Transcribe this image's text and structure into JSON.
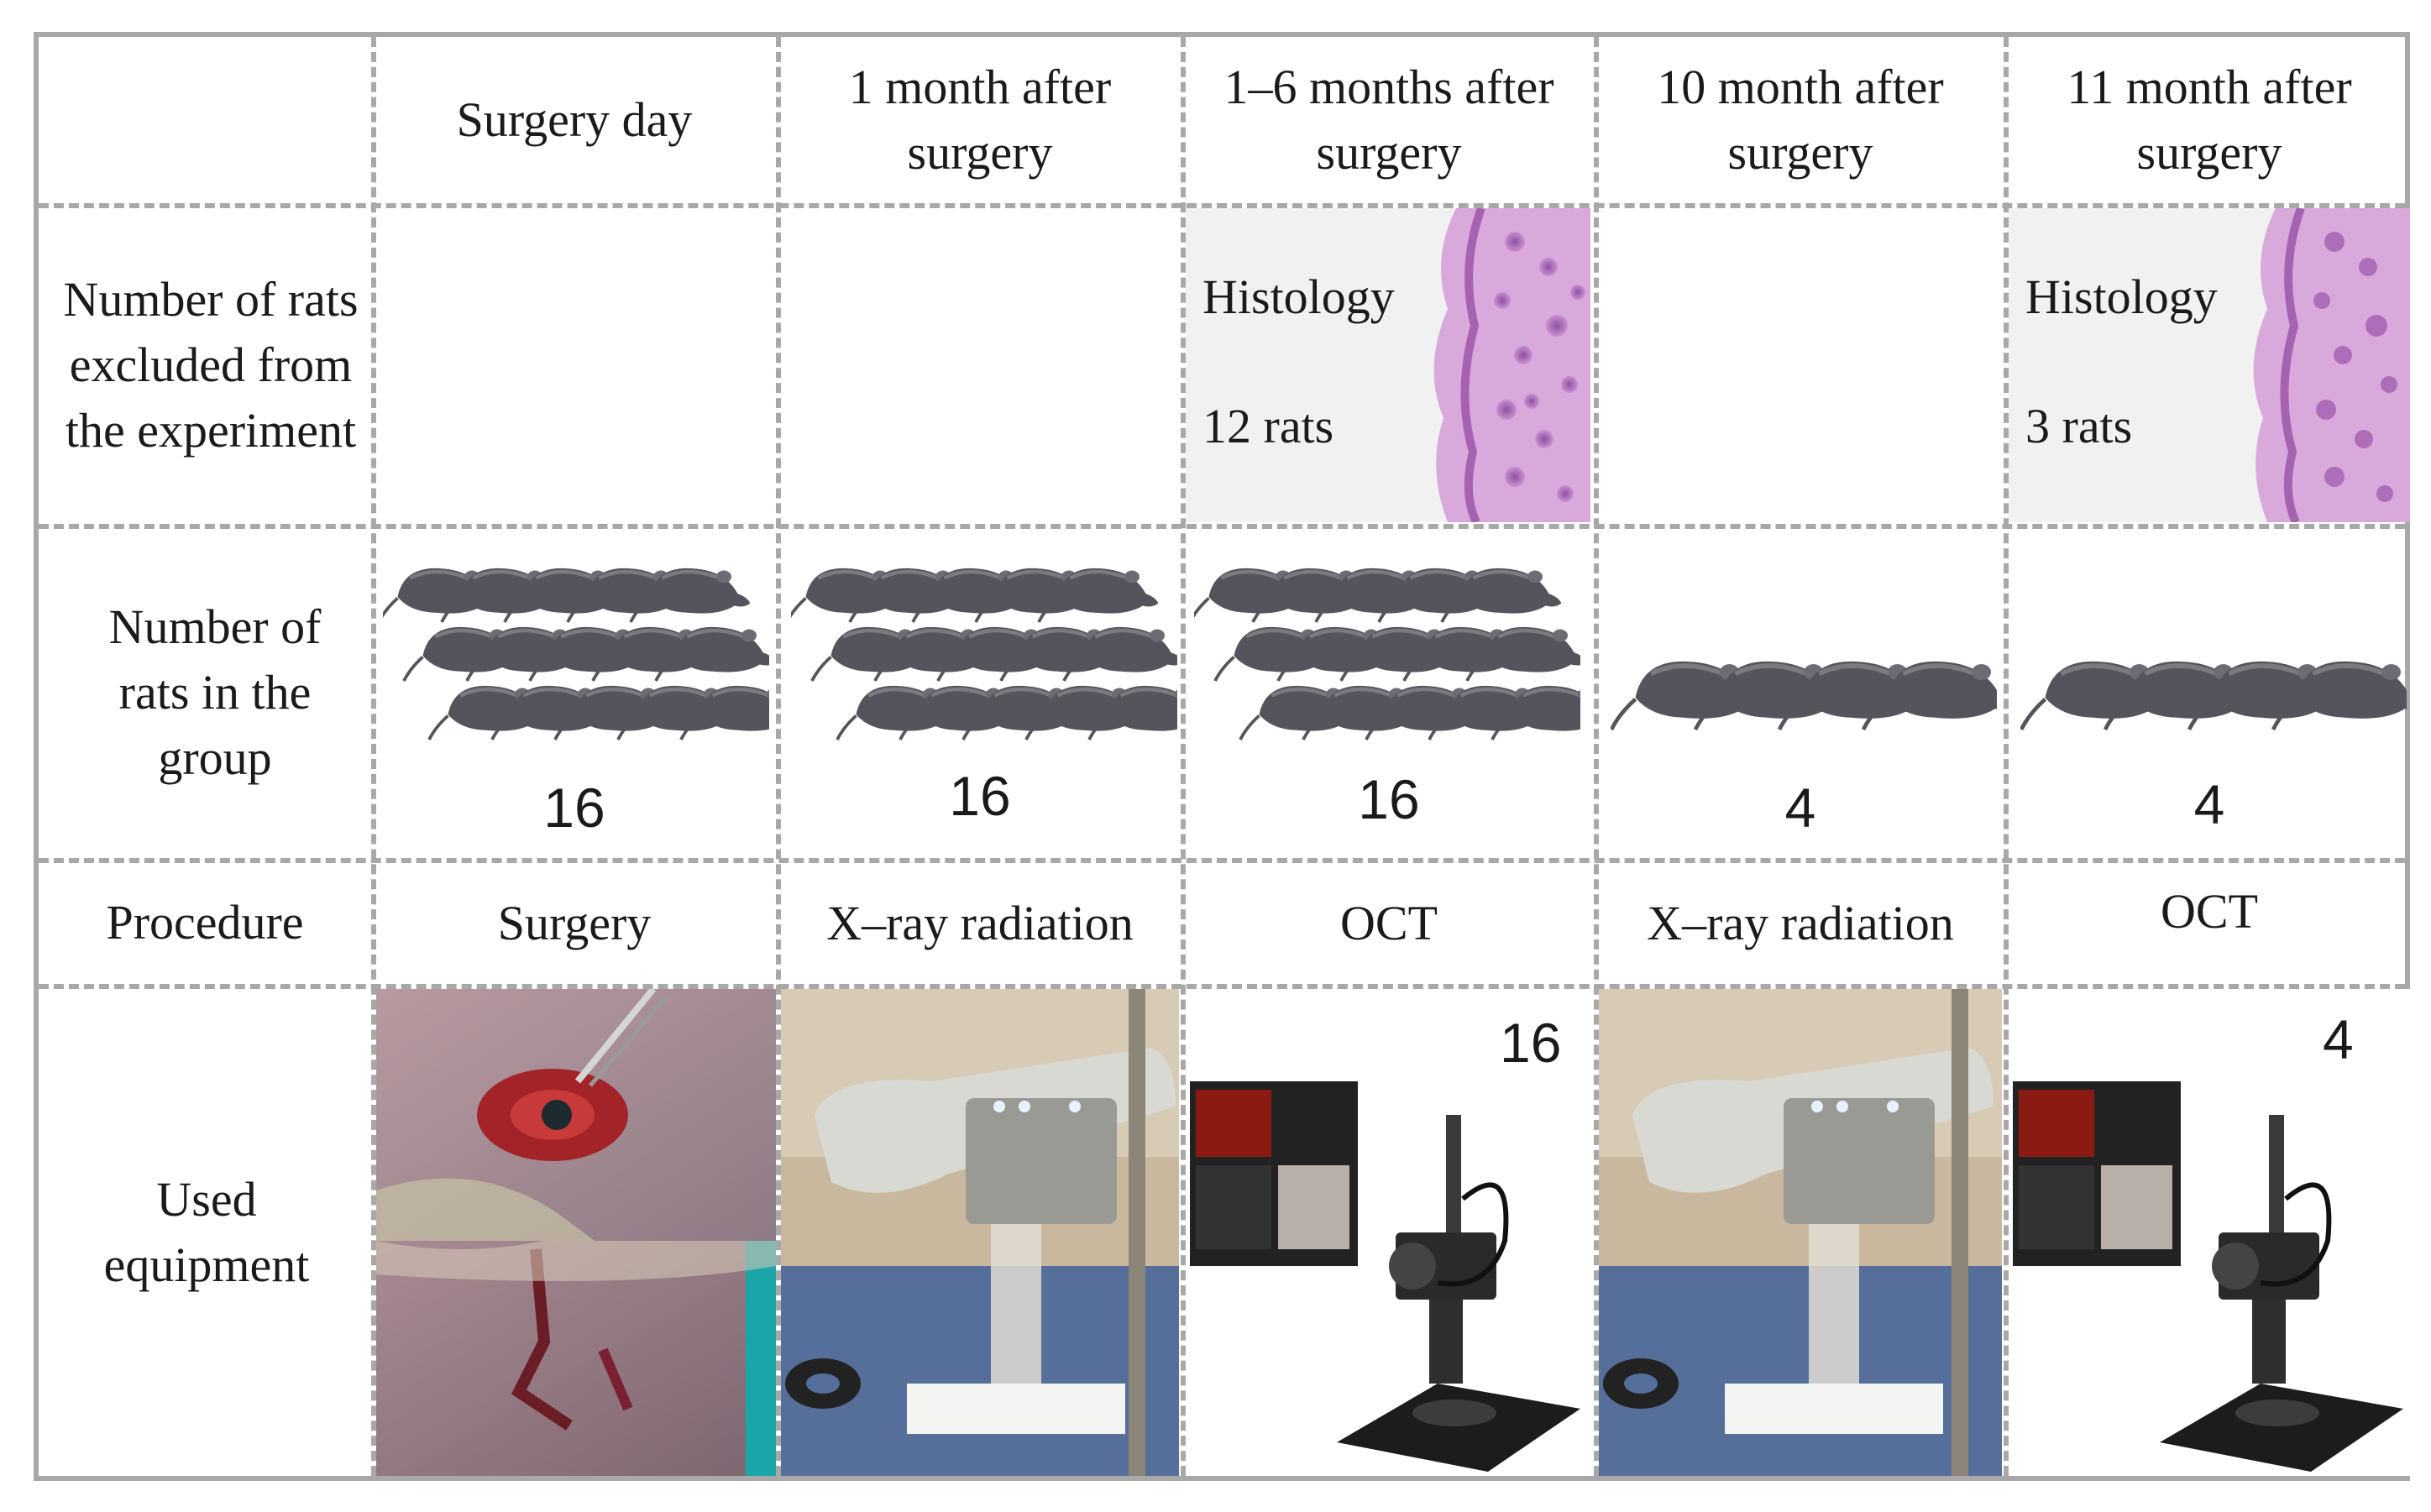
{
  "columns": [
    {
      "header": "Surgery day"
    },
    {
      "header": "1 month after surgery"
    },
    {
      "header": "1–6 months after surgery"
    },
    {
      "header": "10 month after surgery"
    },
    {
      "header": "11 month after surgery"
    }
  ],
  "row_headers": {
    "excluded": "Number of rats excluded from the experiment",
    "group": "Number of rats in the group",
    "procedure": "Procedure",
    "equipment": "Used equipment"
  },
  "excluded": {
    "col3": {
      "label": "Histology",
      "count": "12 rats"
    },
    "col5": {
      "label": "Histology",
      "count": "3 rats"
    }
  },
  "group_counts": [
    "16",
    "16",
    "16",
    "4",
    "4"
  ],
  "procedures": [
    "Surgery",
    "X–ray radiation",
    "OCT",
    "X–ray radiation",
    "OCT"
  ],
  "equipment_counts": {
    "col3": "16",
    "col5": "4"
  },
  "colors": {
    "grid": "#a8a8a8",
    "histology_pink": "#c98ad0",
    "rat_gray": "#5a5a62"
  }
}
